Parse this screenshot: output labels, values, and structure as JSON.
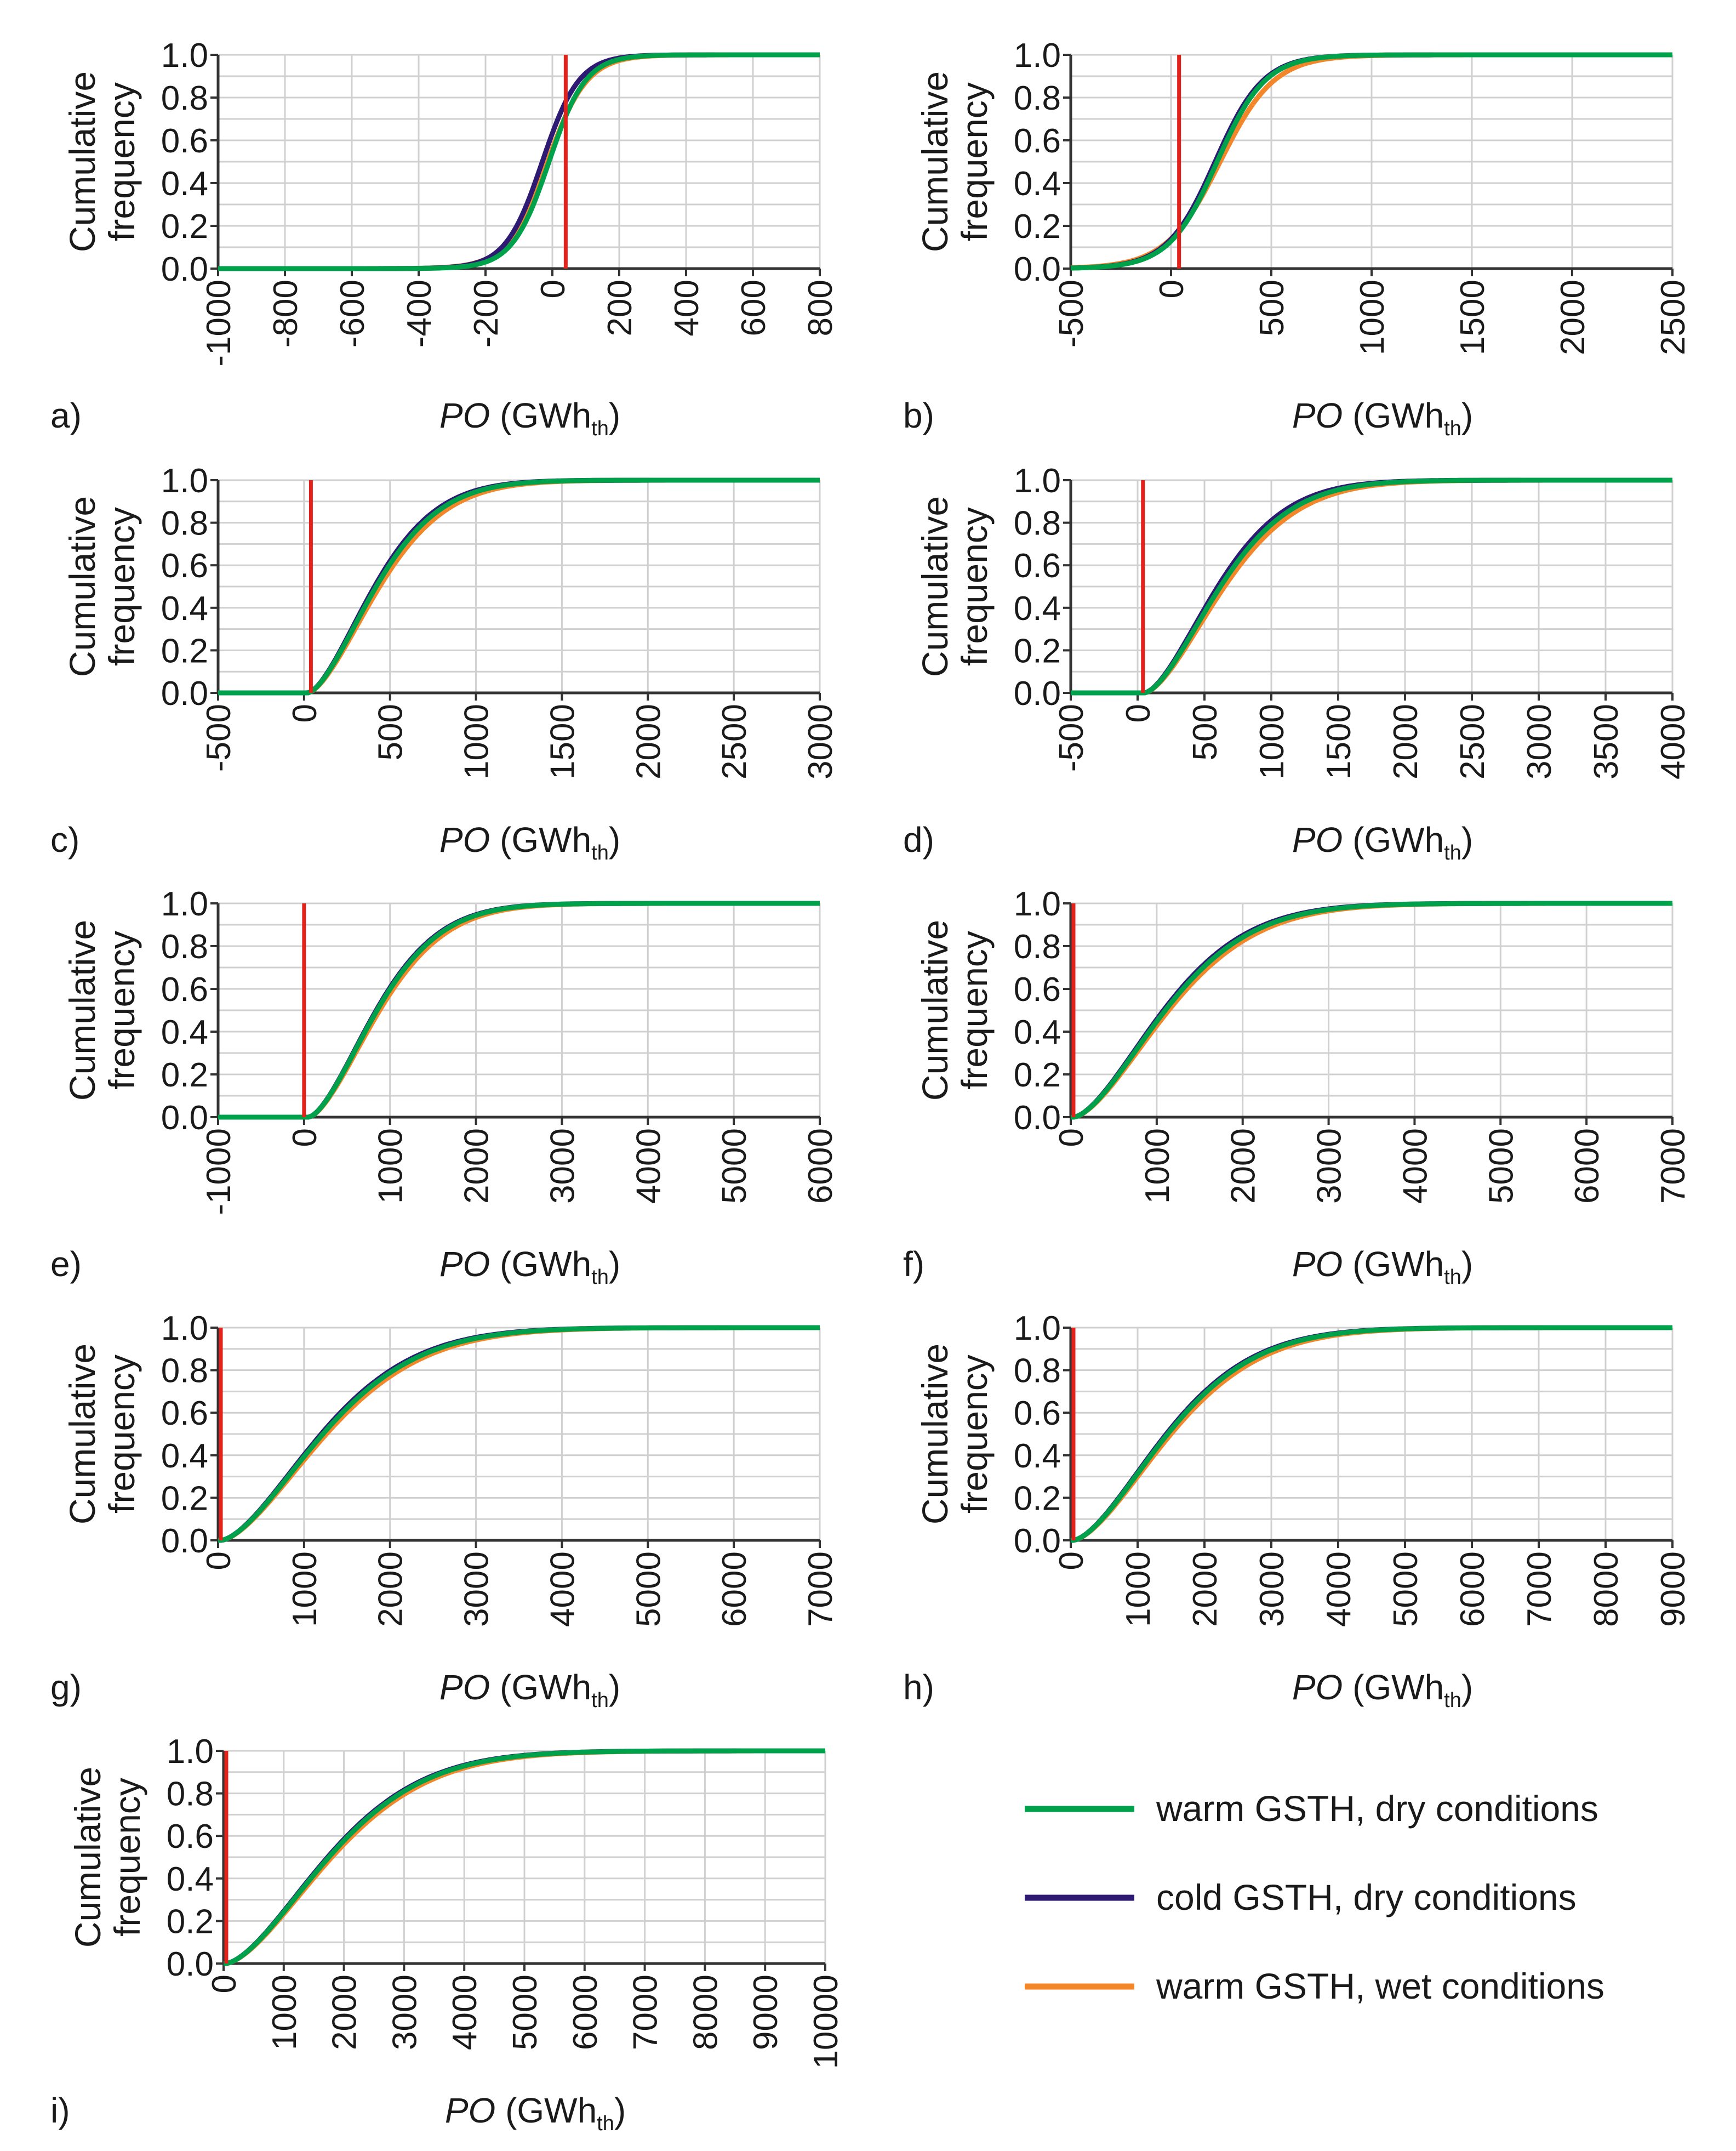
{
  "figure": {
    "ylabel_line1": "Cumulative",
    "ylabel_line2": "frequency",
    "xlabel_main": "PO",
    "xlabel_unit_open": " (GWh",
    "xlabel_unit_sub": "th",
    "xlabel_unit_close": ")"
  },
  "legend": [
    {
      "label": "warm GSTH, dry conditions",
      "color": "#00a14b"
    },
    {
      "label": "cold GSTH, dry conditions",
      "color": "#2e1a72"
    },
    {
      "label": "warm GSTH, wet conditions",
      "color": "#f4862a"
    }
  ],
  "colors": {
    "threshold": "#e3231b",
    "grid": "#d0d0d0",
    "axis": "#333333"
  },
  "chart_data": [
    {
      "panel": "a)",
      "type": "line",
      "ylabel": "Cumulative frequency",
      "xlabel": "PO (GWh_th)",
      "xlim": [
        -1000,
        800
      ],
      "ylim": [
        0,
        1
      ],
      "threshold_x": 40,
      "xticks": [
        -1000,
        -800,
        -600,
        -400,
        -200,
        0,
        200,
        400,
        600,
        800
      ],
      "yticks": [
        0.0,
        0.2,
        0.4,
        0.6,
        0.8,
        1.0
      ],
      "ytick_labels": [
        "0.0",
        "0.2",
        "0.4",
        "0.6",
        "0.8",
        "1.0"
      ],
      "series": [
        {
          "name": "warm GSTH, dry conditions",
          "cdf": {
            "median": -10,
            "spread": 55
          }
        },
        {
          "name": "cold GSTH, dry conditions",
          "cdf": {
            "median": -30,
            "spread": 55
          }
        },
        {
          "name": "warm GSTH, wet conditions",
          "cdf": {
            "median": -15,
            "spread": 60
          }
        }
      ]
    },
    {
      "panel": "b)",
      "type": "line",
      "ylabel": "Cumulative frequency",
      "xlabel": "PO (GWh_th)",
      "xlim": [
        -500,
        2500
      ],
      "ylim": [
        0,
        1
      ],
      "threshold_x": 40,
      "xticks": [
        -500,
        0,
        500,
        1000,
        1500,
        2000,
        2500
      ],
      "yticks": [
        0.0,
        0.2,
        0.4,
        0.6,
        0.8,
        1.0
      ],
      "ytick_labels": [
        "0.0",
        "0.2",
        "0.4",
        "0.6",
        "0.8",
        "1.0"
      ],
      "series": [
        {
          "name": "warm GSTH, dry conditions",
          "cdf": {
            "median": 230,
            "spread": 120
          }
        },
        {
          "name": "cold GSTH, dry conditions",
          "cdf": {
            "median": 220,
            "spread": 120
          }
        },
        {
          "name": "warm GSTH, wet conditions",
          "cdf": {
            "median": 245,
            "spread": 135
          }
        }
      ]
    },
    {
      "panel": "c)",
      "type": "line",
      "ylabel": "Cumulative frequency",
      "xlabel": "PO (GWh_th)",
      "xlim": [
        -500,
        3000
      ],
      "ylim": [
        0,
        1
      ],
      "threshold_x": 40,
      "xticks": [
        -500,
        0,
        500,
        1000,
        1500,
        2000,
        2500,
        3000
      ],
      "yticks": [
        0.0,
        0.2,
        0.4,
        0.6,
        0.8,
        1.0
      ],
      "ytick_labels": [
        "0.0",
        "0.2",
        "0.4",
        "0.6",
        "0.8",
        "1.0"
      ],
      "series": [
        {
          "name": "warm GSTH, dry conditions",
          "cdf": {
            "start": 20,
            "median": 420,
            "tail": 170
          }
        },
        {
          "name": "cold GSTH, dry conditions",
          "cdf": {
            "start": 20,
            "median": 410,
            "tail": 165
          }
        },
        {
          "name": "warm GSTH, wet conditions",
          "cdf": {
            "start": 20,
            "median": 440,
            "tail": 195
          }
        }
      ]
    },
    {
      "panel": "d)",
      "type": "line",
      "ylabel": "Cumulative frequency",
      "xlabel": "PO (GWh_th)",
      "xlim": [
        -500,
        4000
      ],
      "ylim": [
        0,
        1
      ],
      "threshold_x": 40,
      "xticks": [
        -500,
        0,
        500,
        1000,
        1500,
        2000,
        2500,
        3000,
        3500,
        4000
      ],
      "yticks": [
        0.0,
        0.2,
        0.4,
        0.6,
        0.8,
        1.0
      ],
      "ytick_labels": [
        "0.0",
        "0.2",
        "0.4",
        "0.6",
        "0.8",
        "1.0"
      ],
      "series": [
        {
          "name": "warm GSTH, dry conditions",
          "cdf": {
            "start": 50,
            "median": 620,
            "tail": 280
          }
        },
        {
          "name": "cold GSTH, dry conditions",
          "cdf": {
            "start": 50,
            "median": 600,
            "tail": 275
          }
        },
        {
          "name": "warm GSTH, wet conditions",
          "cdf": {
            "start": 50,
            "median": 650,
            "tail": 320
          }
        }
      ]
    },
    {
      "panel": "e)",
      "type": "line",
      "ylabel": "Cumulative frequency",
      "xlabel": "PO (GWh_th)",
      "xlim": [
        -1000,
        6000
      ],
      "ylim": [
        0,
        1
      ],
      "threshold_x": 0,
      "xticks": [
        -1000,
        0,
        1000,
        2000,
        3000,
        4000,
        5000,
        6000
      ],
      "yticks": [
        0.0,
        0.2,
        0.4,
        0.6,
        0.8,
        1.0
      ],
      "ytick_labels": [
        "0.0",
        "0.2",
        "0.4",
        "0.6",
        "0.8",
        "1.0"
      ],
      "series": [
        {
          "name": "warm GSTH, dry conditions",
          "cdf": {
            "start": 50,
            "median": 850,
            "tail": 380
          }
        },
        {
          "name": "cold GSTH, dry conditions",
          "cdf": {
            "start": 50,
            "median": 840,
            "tail": 375
          }
        },
        {
          "name": "warm GSTH, wet conditions",
          "cdf": {
            "start": 50,
            "median": 880,
            "tail": 440
          }
        }
      ]
    },
    {
      "panel": "f)",
      "type": "line",
      "ylabel": "Cumulative frequency",
      "xlabel": "PO (GWh_th)",
      "xlim": [
        0,
        7000
      ],
      "ylim": [
        0,
        1
      ],
      "threshold_x": 0,
      "xticks": [
        0,
        1000,
        2000,
        3000,
        4000,
        5000,
        6000,
        7000
      ],
      "yticks": [
        0.0,
        0.2,
        0.4,
        0.6,
        0.8,
        1.0
      ],
      "ytick_labels": [
        "0.0",
        "0.2",
        "0.4",
        "0.6",
        "0.8",
        "1.0"
      ],
      "series": [
        {
          "name": "warm GSTH, dry conditions",
          "cdf": {
            "start": 30,
            "median": 1100,
            "tail": 550
          }
        },
        {
          "name": "cold GSTH, dry conditions",
          "cdf": {
            "start": 30,
            "median": 1080,
            "tail": 540
          }
        },
        {
          "name": "warm GSTH, wet conditions",
          "cdf": {
            "start": 30,
            "median": 1140,
            "tail": 640
          }
        }
      ]
    },
    {
      "panel": "g)",
      "type": "line",
      "ylabel": "Cumulative frequency",
      "xlabel": "PO (GWh_th)",
      "xlim": [
        0,
        7000
      ],
      "ylim": [
        0,
        1
      ],
      "threshold_x": 0,
      "xticks": [
        0,
        1000,
        2000,
        3000,
        4000,
        5000,
        6000,
        7000
      ],
      "yticks": [
        0.0,
        0.2,
        0.4,
        0.6,
        0.8,
        1.0
      ],
      "ytick_labels": [
        "0.0",
        "0.2",
        "0.4",
        "0.6",
        "0.8",
        "1.0"
      ],
      "series": [
        {
          "name": "warm GSTH, dry conditions",
          "cdf": {
            "start": 30,
            "median": 1220,
            "tail": 700
          }
        },
        {
          "name": "cold GSTH, dry conditions",
          "cdf": {
            "start": 30,
            "median": 1200,
            "tail": 690
          }
        },
        {
          "name": "warm GSTH, wet conditions",
          "cdf": {
            "start": 30,
            "median": 1260,
            "tail": 820
          }
        }
      ]
    },
    {
      "panel": "h)",
      "type": "line",
      "ylabel": "Cumulative frequency",
      "xlabel": "PO (GWh_th)",
      "xlim": [
        0,
        9000
      ],
      "ylim": [
        0,
        1
      ],
      "threshold_x": 0,
      "xticks": [
        0,
        1000,
        2000,
        3000,
        4000,
        5000,
        6000,
        7000,
        8000,
        9000
      ],
      "yticks": [
        0.0,
        0.2,
        0.4,
        0.6,
        0.8,
        1.0
      ],
      "ytick_labels": [
        "0.0",
        "0.2",
        "0.4",
        "0.6",
        "0.8",
        "1.0"
      ],
      "series": [
        {
          "name": "warm GSTH, dry conditions",
          "cdf": {
            "start": 30,
            "median": 1450,
            "tail": 850
          }
        },
        {
          "name": "cold GSTH, dry conditions",
          "cdf": {
            "start": 30,
            "median": 1430,
            "tail": 840
          }
        },
        {
          "name": "warm GSTH, wet conditions",
          "cdf": {
            "start": 30,
            "median": 1500,
            "tail": 980
          }
        }
      ]
    },
    {
      "panel": "i)",
      "type": "line",
      "ylabel": "Cumulative frequency",
      "xlabel": "PO (GWh_th)",
      "xlim": [
        0,
        10000
      ],
      "ylim": [
        0,
        1
      ],
      "threshold_x": 0,
      "xticks": [
        0,
        1000,
        2000,
        3000,
        4000,
        5000,
        6000,
        7000,
        8000,
        9000,
        10000
      ],
      "yticks": [
        0.0,
        0.2,
        0.4,
        0.6,
        0.8,
        1.0
      ],
      "ytick_labels": [
        "0.0",
        "0.2",
        "0.4",
        "0.6",
        "0.8",
        "1.0"
      ],
      "series": [
        {
          "name": "warm GSTH, dry conditions",
          "cdf": {
            "start": 30,
            "median": 1750,
            "tail": 1000
          }
        },
        {
          "name": "cold GSTH, dry conditions",
          "cdf": {
            "start": 30,
            "median": 1730,
            "tail": 990
          }
        },
        {
          "name": "warm GSTH, wet conditions",
          "cdf": {
            "start": 30,
            "median": 1800,
            "tail": 1150
          }
        }
      ]
    }
  ]
}
